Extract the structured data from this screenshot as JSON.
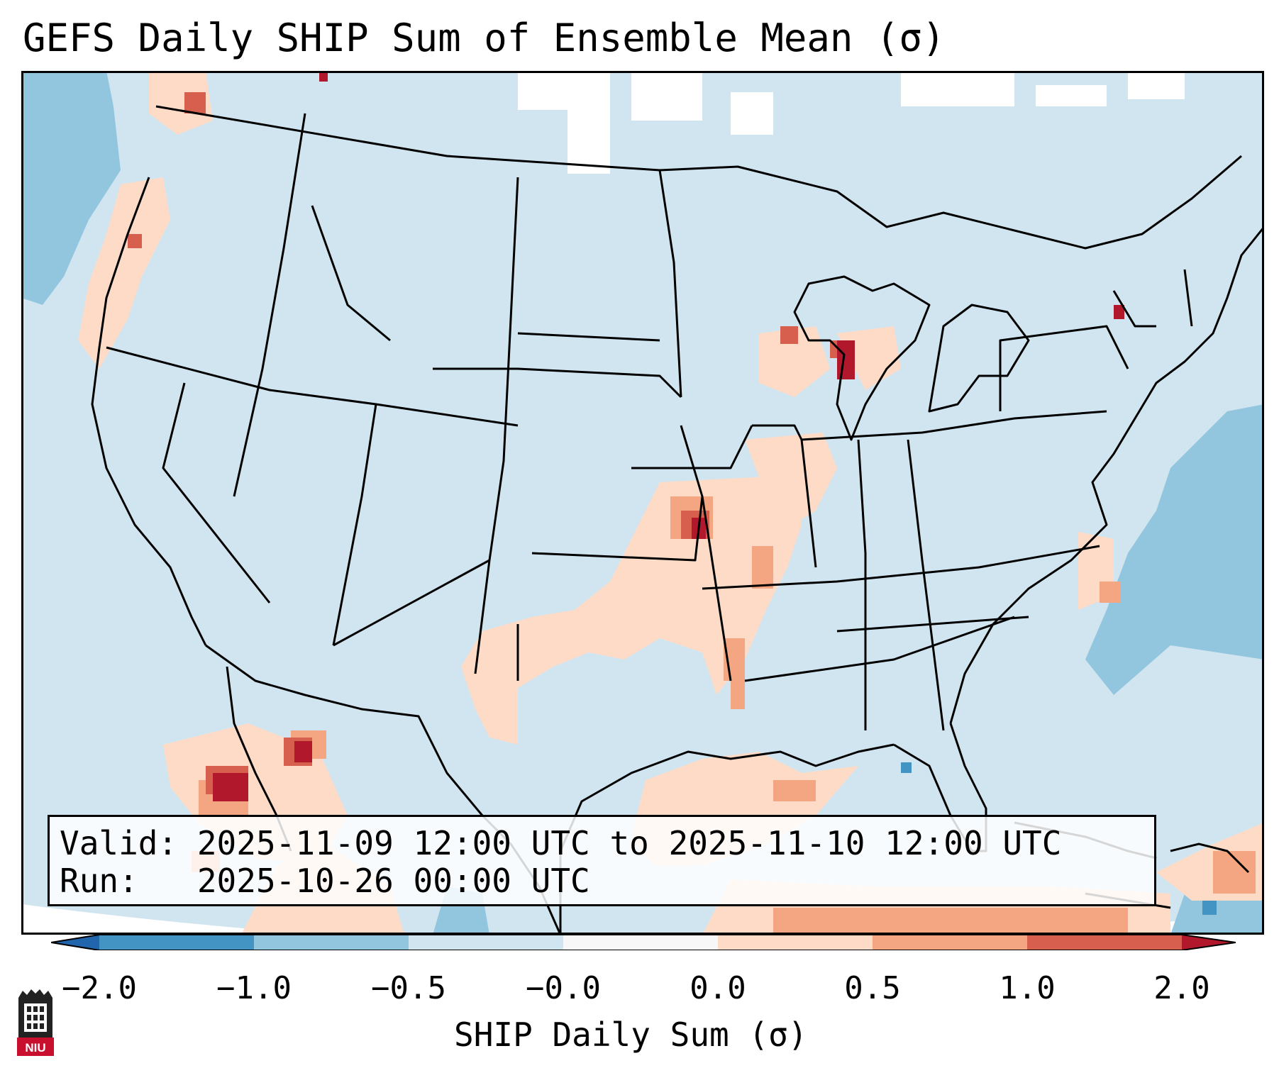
{
  "title": "GEFS Daily SHIP Sum of Ensemble Mean (σ)",
  "info": {
    "valid": "Valid: 2025-11-09 12:00 UTC to 2025-11-10 12:00 UTC",
    "run": "Run:   2025-10-26 00:00 UTC"
  },
  "colorbar": {
    "label": "SHIP Daily Sum (σ)",
    "ticks": [
      "−2.0",
      "−1.0",
      "−0.5",
      "−0.0",
      "0.0",
      "0.5",
      "1.0",
      "2.0"
    ],
    "colors": [
      "#4393c3",
      "#92c5de",
      "#d1e5f0",
      "#f7f7f7",
      "#fddbc7",
      "#f4a582",
      "#d6604d"
    ],
    "extend_low_color": "#2166ac",
    "extend_high_color": "#b2182b"
  },
  "map": {
    "ocean_color": "#d1e5f0",
    "outside_color": "#ffffff",
    "border_color": "#000000"
  },
  "logo": {
    "text": "NIU",
    "color": "#c8102e"
  }
}
